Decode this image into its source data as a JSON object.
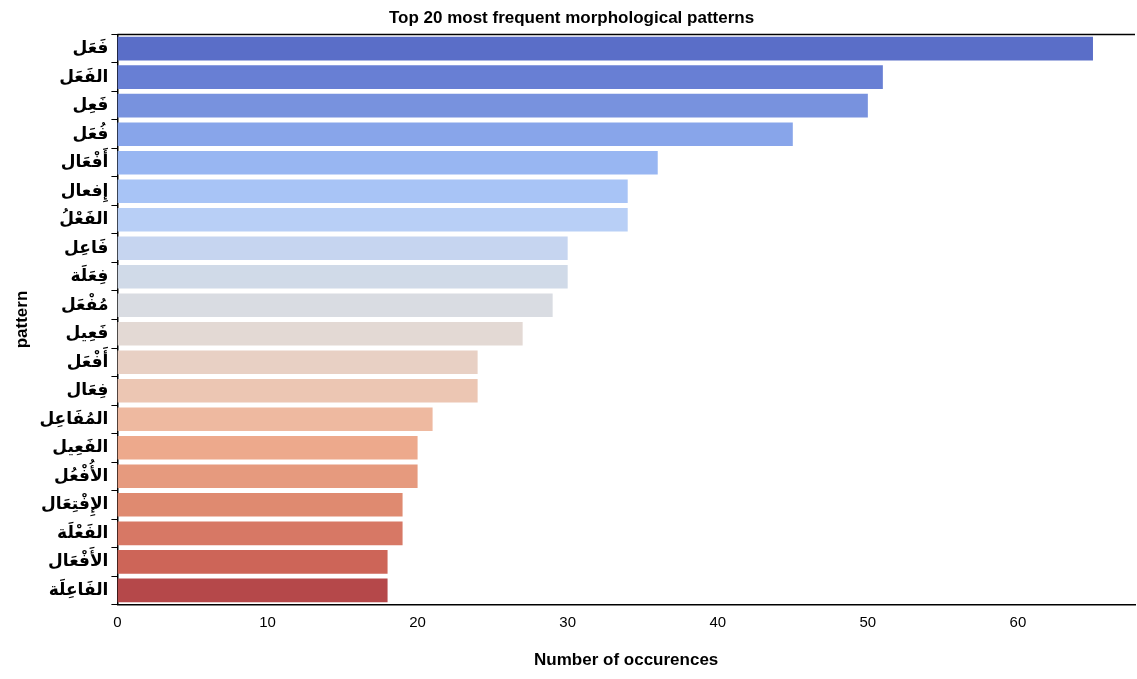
{
  "chart_data": {
    "type": "bar",
    "orientation": "horizontal",
    "title": "Top 20 most frequent morphological patterns",
    "xlabel": "Number of occurences",
    "ylabel": "pattern",
    "categories": [
      "فَعَل",
      "الفَعَل",
      "فَعِل",
      "فُعَل",
      "أَفْعَال",
      "إِفعال",
      "الفَعْلُ",
      "فَاعِل",
      "فِعَلَة",
      "مُفْعَل",
      "فَعِيل",
      "أَفْعَل",
      "فِعَال",
      "المُفَاعِل",
      "الفَعِيل",
      "الأُفْعُل",
      "الإِفْتِعَال",
      "الفَعْلَة",
      "الأَفْعَال",
      "الفَاعِلَة"
    ],
    "values": [
      65,
      51,
      50,
      45,
      36,
      34,
      34,
      30,
      30,
      29,
      27,
      24,
      24,
      21,
      20,
      20,
      19,
      19,
      18,
      18
    ],
    "colors": [
      "#5a6ec8",
      "#687fd4",
      "#7892de",
      "#88a5ea",
      "#98b6f2",
      "#a8c4f6",
      "#b8cff6",
      "#c6d5f0",
      "#d0dae8",
      "#d9dce2",
      "#e3d9d4",
      "#e8d0c4",
      "#ecc6b3",
      "#eeb9a0",
      "#eda98c",
      "#e69a7e",
      "#df8a70",
      "#d77865",
      "#cd6558",
      "#b5484a"
    ],
    "xlim": [
      0,
      67.8
    ],
    "xticks": [
      0,
      10,
      20,
      30,
      40,
      50,
      60
    ],
    "grid": false,
    "legend": false
  }
}
